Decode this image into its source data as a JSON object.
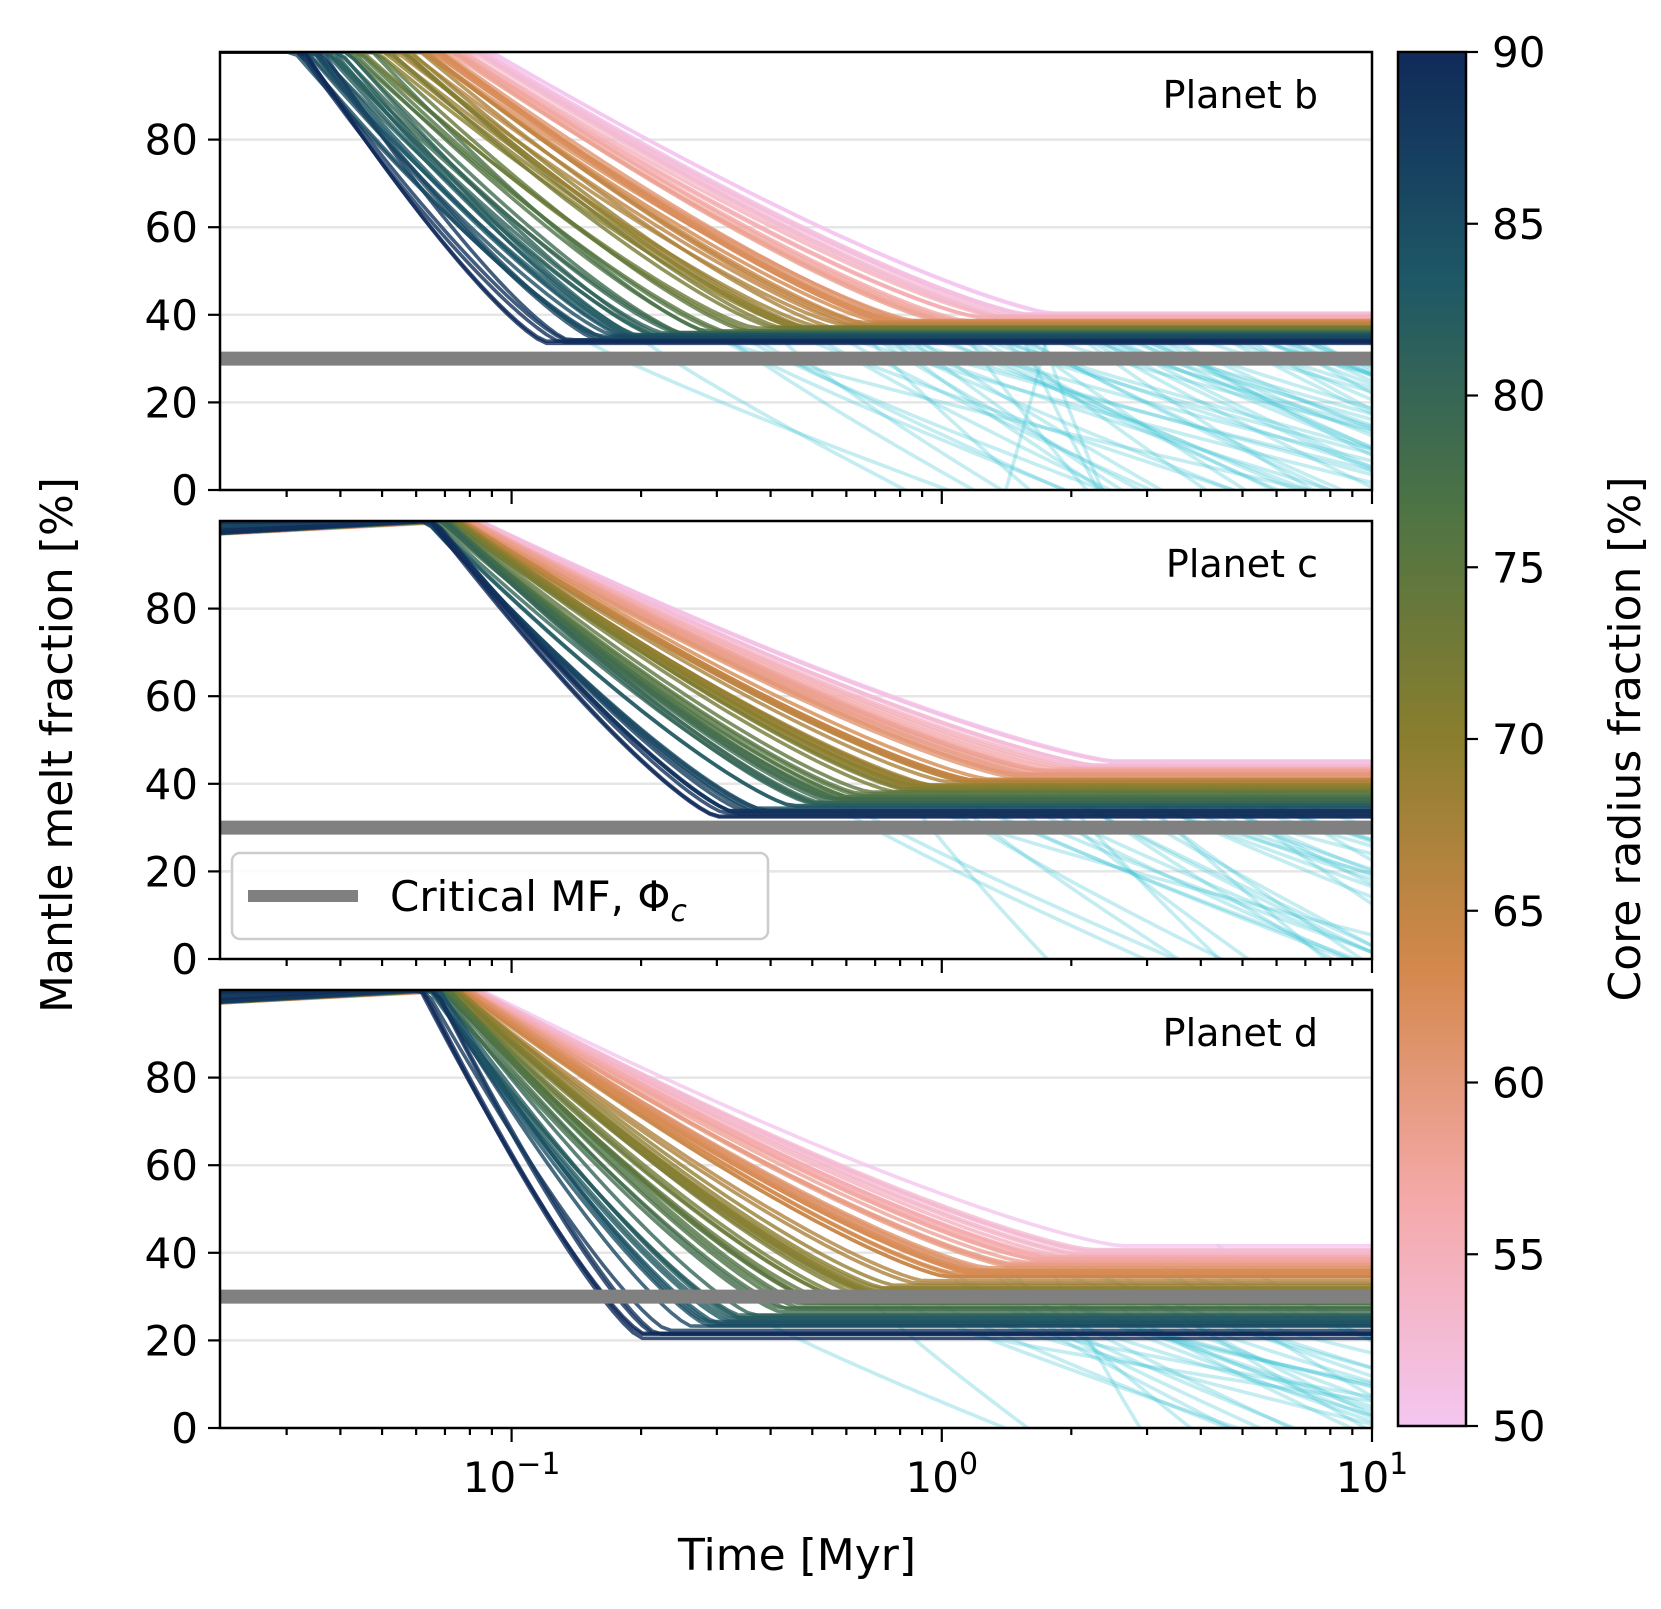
{
  "chart_data": {
    "type": "line",
    "xlabel": "Time [Myr]",
    "ylabel": "Mantle melt fraction [%]",
    "x_scale": "log",
    "xlim": [
      0.021,
      10
    ],
    "x_ticks": [
      {
        "value": 0.1,
        "base": "10",
        "exp": "−1"
      },
      {
        "value": 1,
        "base": "10",
        "exp": "0"
      },
      {
        "value": 10,
        "base": "10",
        "exp": "1"
      }
    ],
    "ylim": [
      0,
      100
    ],
    "y_ticks": [
      "0",
      "20",
      "40",
      "60",
      "80"
    ],
    "critical_melt_fraction": 30,
    "legend": {
      "label_text": "Critical MF, Φ",
      "label_subscript": "c",
      "placement": "lower-left (Planet c panel)"
    },
    "colors": {
      "critical": "#808080",
      "solidified": "#3cc4d4",
      "colormap": [
        "#f4c6f0",
        "#f4a9a8",
        "#d4884c",
        "#8a7e2e",
        "#4e7444",
        "#1e5866",
        "#102a5a"
      ]
    },
    "colorbar": {
      "label": "Core radius fraction [%]",
      "range": [
        50,
        90
      ],
      "ticks": [
        "50",
        "55",
        "60",
        "65",
        "70",
        "75",
        "80",
        "85",
        "90"
      ]
    },
    "panels": [
      {
        "label": "Planet b",
        "plateau_range": [
          34,
          40
        ],
        "decline_start_range": [
          0.026,
          0.09
        ],
        "plateau_time_range": [
          0.12,
          1.8
        ],
        "solidified_crossing_range": [
          0.12,
          8
        ]
      },
      {
        "label": "Planet c",
        "plateau_range": [
          33,
          45
        ],
        "decline_start_range": [
          0.06,
          0.085
        ],
        "plateau_time_range": [
          0.3,
          2.6
        ],
        "solidified_crossing_range": [
          0.4,
          8
        ]
      },
      {
        "label": "Planet d",
        "plateau_range": [
          21,
          42
        ],
        "decline_start_range": [
          0.06,
          0.085
        ],
        "plateau_time_range": [
          0.2,
          2.6
        ],
        "solidified_crossing_range": [
          0.3,
          8
        ]
      }
    ]
  }
}
